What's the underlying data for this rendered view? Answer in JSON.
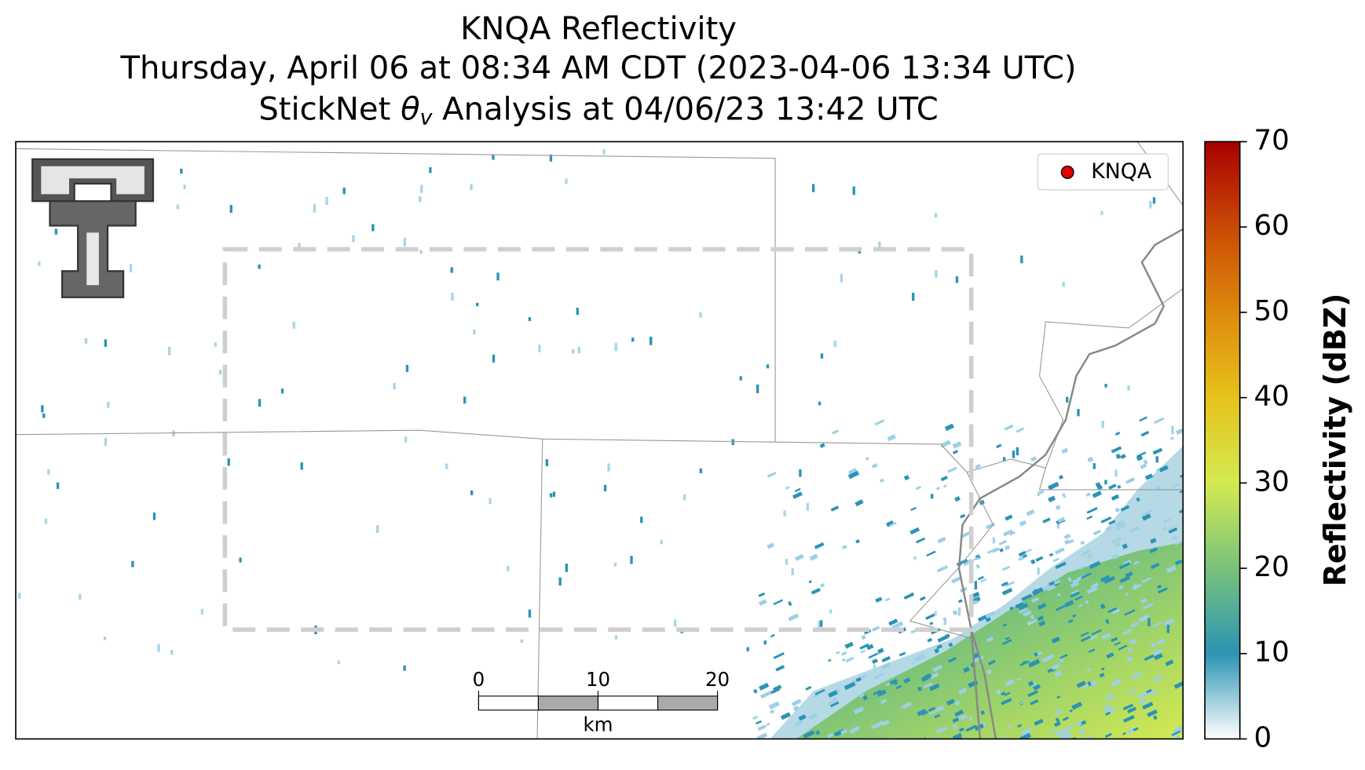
{
  "title": {
    "line1": "KNQA Reflectivity",
    "line2": "Thursday, April 06 at 08:34 AM CDT (2023-04-06 13:34 UTC)",
    "line3": {
      "before": "StickNet ",
      "symbol": "θ",
      "subscript": "v",
      "after": " Analysis at 04/06/23 13:42 UTC"
    }
  },
  "map": {
    "legend": "KNQA",
    "scale_bar": {
      "ticks": [
        0,
        10,
        20
      ],
      "unit": "km"
    }
  },
  "colorbar": {
    "label": "Reflectivity (dBZ)",
    "ylim": [
      0,
      70
    ],
    "yticks": [
      0,
      10,
      20,
      30,
      40,
      50,
      60,
      70
    ],
    "colors": [
      "#ffffff",
      "#2b93b5",
      "#79c27a",
      "#d3ea52",
      "#e6c21c",
      "#de8a0c",
      "#c94a06",
      "#a80000"
    ]
  }
}
